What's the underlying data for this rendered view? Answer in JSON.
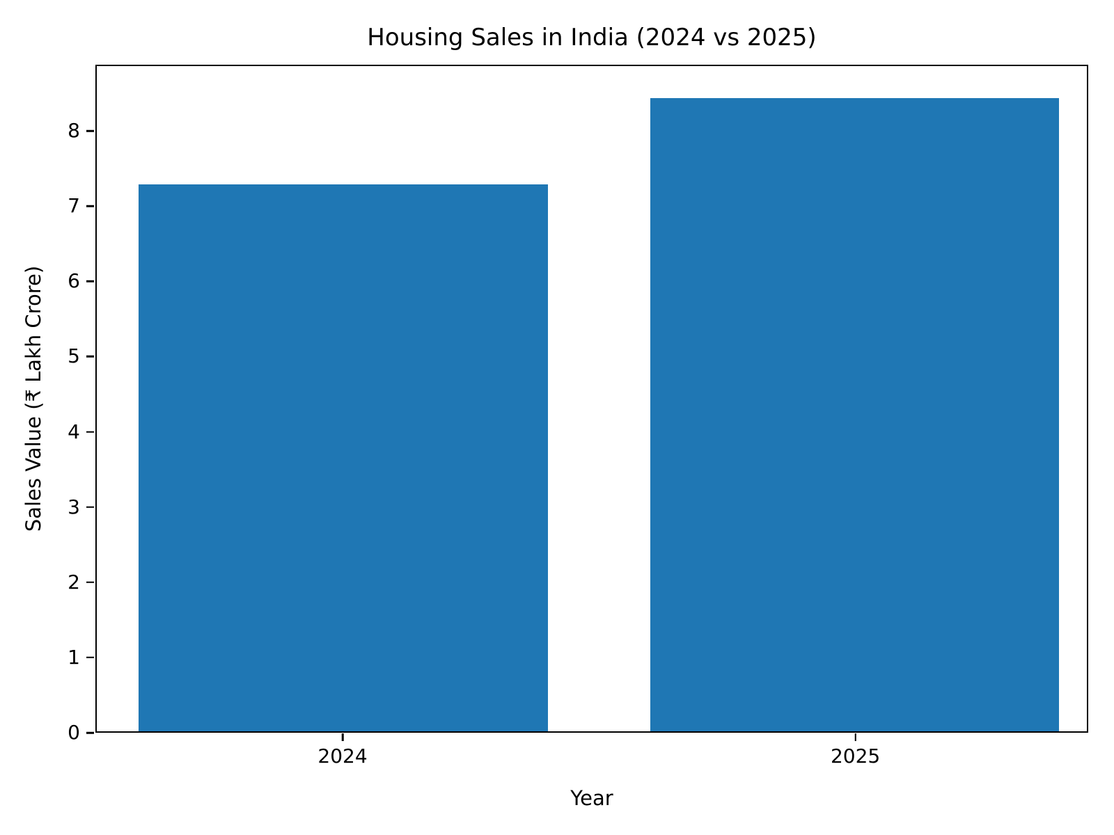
{
  "page": {
    "background": "#ffffff",
    "text_color": "#000000"
  },
  "chart_data": {
    "type": "bar",
    "title": "Housing Sales in India (2024 vs 2025)",
    "xlabel": "Year",
    "ylabel": "Sales Value (₹ Lakh Crore)",
    "categories": [
      "2024",
      "2025"
    ],
    "values": [
      7.3,
      8.45
    ],
    "bar_color": "#1f77b4",
    "ylim": [
      0,
      8.88
    ],
    "yticks": [
      0,
      1,
      2,
      3,
      4,
      5,
      6,
      7,
      8
    ],
    "xlim": [
      -0.482,
      1.454
    ],
    "bar_width": 0.8,
    "grid": false,
    "legend": "none"
  }
}
